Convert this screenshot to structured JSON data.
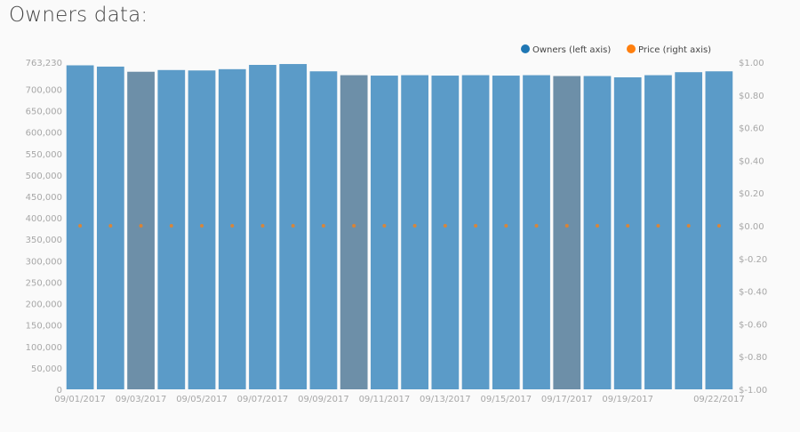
{
  "page": {
    "section_title": "Owners data:"
  },
  "colors": {
    "owners_bar": "#5b9bc8",
    "owners_bar_highlight": "#6d8fa8",
    "owners_legend": "#1f77b4",
    "price": "#ff7f0e",
    "tick_text": "#a7a7a7"
  },
  "chart_data": {
    "type": "bar",
    "title": "",
    "legend_position": "top-right",
    "grid": false,
    "x": [
      "09/01/2017",
      "09/02/2017",
      "09/03/2017",
      "09/04/2017",
      "09/05/2017",
      "09/06/2017",
      "09/07/2017",
      "09/08/2017",
      "09/09/2017",
      "09/10/2017",
      "09/11/2017",
      "09/12/2017",
      "09/13/2017",
      "09/14/2017",
      "09/15/2017",
      "09/16/2017",
      "09/17/2017",
      "09/18/2017",
      "09/19/2017",
      "09/20/2017",
      "09/21/2017",
      "09/22/2017"
    ],
    "x_tick_labels": [
      {
        "index": 0,
        "label": "09/01/2017"
      },
      {
        "index": 2,
        "label": "09/03/2017"
      },
      {
        "index": 4,
        "label": "09/05/2017"
      },
      {
        "index": 6,
        "label": "09/07/2017"
      },
      {
        "index": 8,
        "label": "09/09/2017"
      },
      {
        "index": 10,
        "label": "09/11/2017"
      },
      {
        "index": 12,
        "label": "09/13/2017"
      },
      {
        "index": 14,
        "label": "09/15/2017"
      },
      {
        "index": 16,
        "label": "09/17/2017"
      },
      {
        "index": 18,
        "label": "09/19/2017"
      },
      {
        "index": 21,
        "label": "09/22/2017"
      }
    ],
    "highlighted_indices": [
      2,
      9,
      16
    ],
    "series": [
      {
        "name": "Owners (left axis)",
        "axis": "left",
        "kind": "bar",
        "values": [
          756000,
          753000,
          741000,
          745000,
          744000,
          747000,
          757000,
          759000,
          742000,
          733000,
          732000,
          733000,
          732000,
          733000,
          732000,
          733000,
          731000,
          731000,
          728000,
          733000,
          740000,
          742000
        ]
      },
      {
        "name": "Price (right axis)",
        "axis": "right",
        "kind": "scatter",
        "values": [
          0.0,
          0.0,
          0.0,
          0.0,
          0.0,
          0.0,
          0.0,
          0.0,
          0.0,
          0.0,
          0.0,
          0.0,
          0.0,
          0.0,
          0.0,
          0.0,
          0.0,
          0.0,
          0.0,
          0.0,
          0.0,
          0.0
        ]
      }
    ],
    "left_axis": {
      "range": [
        0,
        763230
      ],
      "ticks": [
        {
          "value": 0,
          "label": "0"
        },
        {
          "value": 50000,
          "label": "50,000"
        },
        {
          "value": 100000,
          "label": "100,000"
        },
        {
          "value": 150000,
          "label": "150,000"
        },
        {
          "value": 200000,
          "label": "200,000"
        },
        {
          "value": 250000,
          "label": "250,000"
        },
        {
          "value": 300000,
          "label": "300,000"
        },
        {
          "value": 350000,
          "label": "350,000"
        },
        {
          "value": 400000,
          "label": "400,000"
        },
        {
          "value": 450000,
          "label": "450,000"
        },
        {
          "value": 500000,
          "label": "500,000"
        },
        {
          "value": 550000,
          "label": "550,000"
        },
        {
          "value": 600000,
          "label": "600,000"
        },
        {
          "value": 650000,
          "label": "650,000"
        },
        {
          "value": 700000,
          "label": "700,000"
        },
        {
          "value": 763230,
          "label": "763,230"
        }
      ]
    },
    "right_axis": {
      "range": [
        -1.0,
        1.0
      ],
      "ticks": [
        {
          "value": 1.0,
          "label": "$1.00"
        },
        {
          "value": 0.8,
          "label": "$0.80"
        },
        {
          "value": 0.6,
          "label": "$0.60"
        },
        {
          "value": 0.4,
          "label": "$0.40"
        },
        {
          "value": 0.2,
          "label": "$0.20"
        },
        {
          "value": 0.0,
          "label": "$0.00"
        },
        {
          "value": -0.2,
          "label": "$-0.20"
        },
        {
          "value": -0.4,
          "label": "$-0.40"
        },
        {
          "value": -0.6,
          "label": "$-0.60"
        },
        {
          "value": -0.8,
          "label": "$-0.80"
        },
        {
          "value": -1.0,
          "label": "$-1.00"
        }
      ]
    }
  }
}
